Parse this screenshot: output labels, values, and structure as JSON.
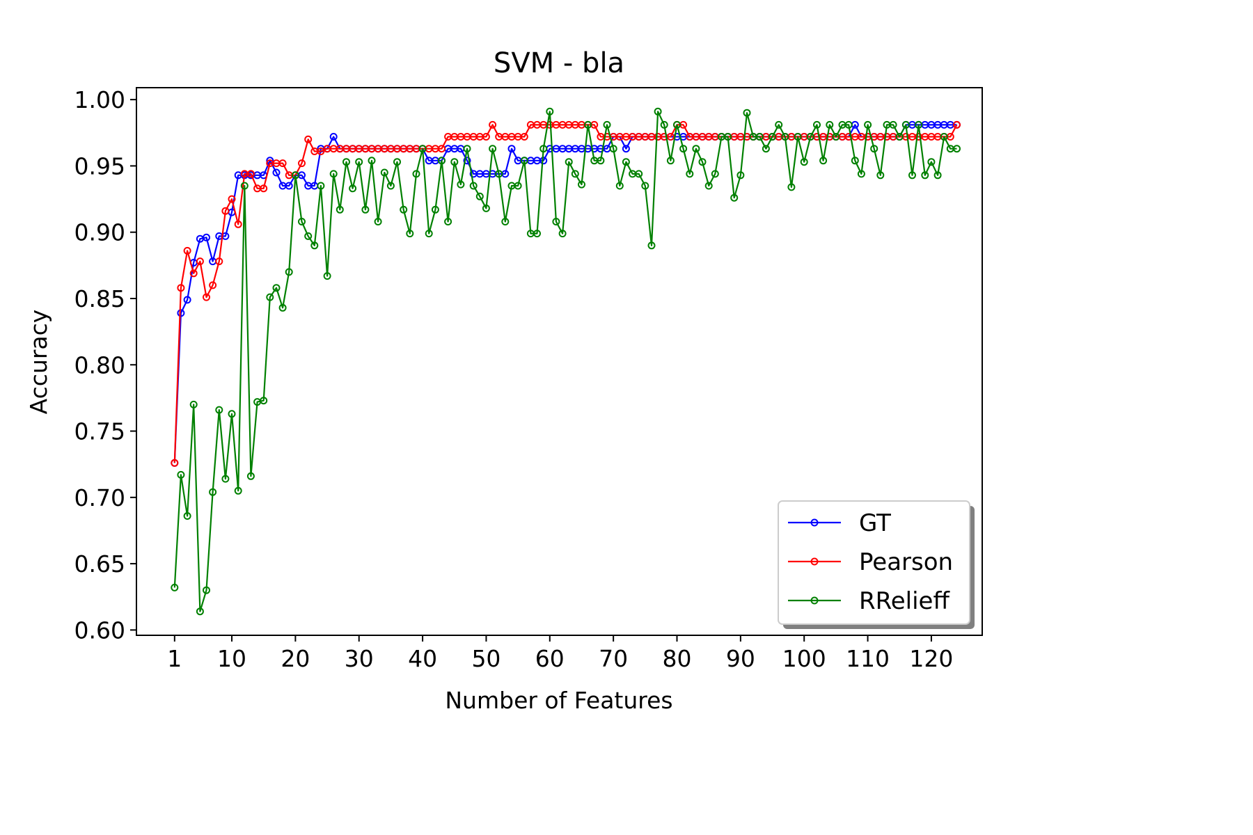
{
  "chart_data": {
    "type": "line",
    "title": "SVM - bla",
    "xlabel": "Number of Features",
    "ylabel": "Accuracy",
    "xlim": [
      -5,
      128
    ],
    "ylim": [
      0.596,
      1.009
    ],
    "xticks": [
      1,
      10,
      20,
      30,
      40,
      50,
      60,
      70,
      80,
      90,
      100,
      110,
      120
    ],
    "yticks": [
      0.6,
      0.65,
      0.7,
      0.75,
      0.8,
      0.85,
      0.9,
      0.95,
      1.0
    ],
    "ytick_labels": [
      "0.60",
      "0.65",
      "0.70",
      "0.75",
      "0.80",
      "0.85",
      "0.90",
      "0.95",
      "1.00"
    ],
    "grid": false,
    "legend_position": "lower-right",
    "marker": "open-circle",
    "series": [
      {
        "name": "GT",
        "color": "#0000ff",
        "x": [
          1,
          2,
          3,
          4,
          5,
          6,
          7,
          8,
          9,
          10,
          11,
          12,
          13,
          14,
          15,
          16,
          17,
          18,
          19,
          20,
          21,
          22,
          23,
          24,
          25,
          26,
          27,
          28,
          29,
          30,
          31,
          32,
          33,
          34,
          35,
          36,
          37,
          38,
          39,
          40,
          41,
          42,
          43,
          44,
          45,
          46,
          47,
          48,
          49,
          50,
          51,
          52,
          53,
          54,
          55,
          56,
          57,
          58,
          59,
          60,
          61,
          62,
          63,
          64,
          65,
          66,
          67,
          68,
          69,
          70,
          71,
          72,
          73,
          74,
          75,
          76,
          77,
          78,
          79,
          80,
          81,
          82,
          83,
          84,
          85,
          86,
          87,
          88,
          89,
          90,
          91,
          92,
          93,
          94,
          95,
          96,
          97,
          98,
          99,
          100,
          101,
          102,
          103,
          104,
          105,
          106,
          107,
          108,
          109,
          110,
          111,
          112,
          113,
          114,
          115,
          116,
          117,
          118,
          119,
          120,
          121,
          122,
          123,
          124
        ],
        "values": [
          0.726,
          0.839,
          0.849,
          0.877,
          0.895,
          0.896,
          0.878,
          0.897,
          0.897,
          0.915,
          0.943,
          0.943,
          0.943,
          0.943,
          0.943,
          0.954,
          0.945,
          0.935,
          0.935,
          0.943,
          0.943,
          0.935,
          0.935,
          0.963,
          0.963,
          0.972,
          0.963,
          0.963,
          0.963,
          0.963,
          0.963,
          0.963,
          0.963,
          0.963,
          0.963,
          0.963,
          0.963,
          0.963,
          0.963,
          0.963,
          0.954,
          0.954,
          0.954,
          0.963,
          0.963,
          0.963,
          0.954,
          0.944,
          0.944,
          0.944,
          0.944,
          0.944,
          0.944,
          0.963,
          0.954,
          0.954,
          0.954,
          0.954,
          0.954,
          0.963,
          0.963,
          0.963,
          0.963,
          0.963,
          0.963,
          0.963,
          0.963,
          0.963,
          0.963,
          0.972,
          0.972,
          0.963,
          0.972,
          0.972,
          0.972,
          0.972,
          0.972,
          0.972,
          0.972,
          0.972,
          0.972,
          0.972,
          0.972,
          0.972,
          0.972,
          0.972,
          0.972,
          0.972,
          0.972,
          0.972,
          0.972,
          0.972,
          0.972,
          0.972,
          0.972,
          0.972,
          0.972,
          0.972,
          0.972,
          0.972,
          0.972,
          0.972,
          0.972,
          0.972,
          0.972,
          0.972,
          0.972,
          0.981,
          0.972,
          0.972,
          0.972,
          0.972,
          0.972,
          0.972,
          0.972,
          0.981,
          0.981,
          0.981,
          0.981,
          0.981,
          0.981,
          0.981,
          0.981,
          0.981
        ]
      },
      {
        "name": "Pearson",
        "color": "#ff0000",
        "x": [
          1,
          2,
          3,
          4,
          5,
          6,
          7,
          8,
          9,
          10,
          11,
          12,
          13,
          14,
          15,
          16,
          17,
          18,
          19,
          20,
          21,
          22,
          23,
          24,
          25,
          26,
          27,
          28,
          29,
          30,
          31,
          32,
          33,
          34,
          35,
          36,
          37,
          38,
          39,
          40,
          41,
          42,
          43,
          44,
          45,
          46,
          47,
          48,
          49,
          50,
          51,
          52,
          53,
          54,
          55,
          56,
          57,
          58,
          59,
          60,
          61,
          62,
          63,
          64,
          65,
          66,
          67,
          68,
          69,
          70,
          71,
          72,
          73,
          74,
          75,
          76,
          77,
          78,
          79,
          80,
          81,
          82,
          83,
          84,
          85,
          86,
          87,
          88,
          89,
          90,
          91,
          92,
          93,
          94,
          95,
          96,
          97,
          98,
          99,
          100,
          101,
          102,
          103,
          104,
          105,
          106,
          107,
          108,
          109,
          110,
          111,
          112,
          113,
          114,
          115,
          116,
          117,
          118,
          119,
          120,
          121,
          122,
          123,
          124
        ],
        "values": [
          0.726,
          0.858,
          0.886,
          0.869,
          0.878,
          0.851,
          0.86,
          0.878,
          0.916,
          0.925,
          0.906,
          0.944,
          0.944,
          0.933,
          0.933,
          0.952,
          0.952,
          0.952,
          0.943,
          0.943,
          0.952,
          0.97,
          0.961,
          0.961,
          0.963,
          0.963,
          0.963,
          0.963,
          0.963,
          0.963,
          0.963,
          0.963,
          0.963,
          0.963,
          0.963,
          0.963,
          0.963,
          0.963,
          0.963,
          0.963,
          0.963,
          0.963,
          0.963,
          0.972,
          0.972,
          0.972,
          0.972,
          0.972,
          0.972,
          0.972,
          0.981,
          0.972,
          0.972,
          0.972,
          0.972,
          0.972,
          0.981,
          0.981,
          0.981,
          0.981,
          0.981,
          0.981,
          0.981,
          0.981,
          0.981,
          0.981,
          0.981,
          0.972,
          0.972,
          0.972,
          0.972,
          0.972,
          0.972,
          0.972,
          0.972,
          0.972,
          0.972,
          0.972,
          0.972,
          0.981,
          0.981,
          0.972,
          0.972,
          0.972,
          0.972,
          0.972,
          0.972,
          0.972,
          0.972,
          0.972,
          0.972,
          0.972,
          0.972,
          0.972,
          0.972,
          0.972,
          0.972,
          0.972,
          0.972,
          0.972,
          0.972,
          0.972,
          0.972,
          0.972,
          0.972,
          0.972,
          0.972,
          0.972,
          0.972,
          0.972,
          0.972,
          0.972,
          0.972,
          0.972,
          0.972,
          0.972,
          0.972,
          0.972,
          0.972,
          0.972,
          0.972,
          0.972,
          0.972,
          0.981
        ]
      },
      {
        "name": "RRelieff",
        "color": "#008000",
        "x": [
          1,
          2,
          3,
          4,
          5,
          6,
          7,
          8,
          9,
          10,
          11,
          12,
          13,
          14,
          15,
          16,
          17,
          18,
          19,
          20,
          21,
          22,
          23,
          24,
          25,
          26,
          27,
          28,
          29,
          30,
          31,
          32,
          33,
          34,
          35,
          36,
          37,
          38,
          39,
          40,
          41,
          42,
          43,
          44,
          45,
          46,
          47,
          48,
          49,
          50,
          51,
          52,
          53,
          54,
          55,
          56,
          57,
          58,
          59,
          60,
          61,
          62,
          63,
          64,
          65,
          66,
          67,
          68,
          69,
          70,
          71,
          72,
          73,
          74,
          75,
          76,
          77,
          78,
          79,
          80,
          81,
          82,
          83,
          84,
          85,
          86,
          87,
          88,
          89,
          90,
          91,
          92,
          93,
          94,
          95,
          96,
          97,
          98,
          99,
          100,
          101,
          102,
          103,
          104,
          105,
          106,
          107,
          108,
          109,
          110,
          111,
          112,
          113,
          114,
          115,
          116,
          117,
          118,
          119,
          120,
          121,
          122,
          123,
          124
        ],
        "values": [
          0.632,
          0.717,
          0.686,
          0.77,
          0.614,
          0.63,
          0.704,
          0.766,
          0.714,
          0.763,
          0.705,
          0.935,
          0.716,
          0.772,
          0.773,
          0.851,
          0.858,
          0.843,
          0.87,
          0.943,
          0.908,
          0.897,
          0.89,
          0.935,
          0.867,
          0.944,
          0.917,
          0.953,
          0.933,
          0.953,
          0.917,
          0.954,
          0.908,
          0.945,
          0.935,
          0.953,
          0.917,
          0.899,
          0.944,
          0.963,
          0.899,
          0.917,
          0.954,
          0.908,
          0.953,
          0.936,
          0.963,
          0.935,
          0.927,
          0.918,
          0.963,
          0.944,
          0.908,
          0.935,
          0.935,
          0.954,
          0.899,
          0.899,
          0.963,
          0.991,
          0.908,
          0.899,
          0.953,
          0.944,
          0.936,
          0.981,
          0.954,
          0.954,
          0.981,
          0.963,
          0.935,
          0.953,
          0.944,
          0.944,
          0.935,
          0.89,
          0.991,
          0.981,
          0.954,
          0.981,
          0.963,
          0.944,
          0.963,
          0.953,
          0.935,
          0.944,
          0.972,
          0.972,
          0.926,
          0.943,
          0.99,
          0.972,
          0.972,
          0.963,
          0.972,
          0.981,
          0.972,
          0.934,
          0.972,
          0.953,
          0.972,
          0.981,
          0.954,
          0.981,
          0.972,
          0.981,
          0.981,
          0.954,
          0.944,
          0.981,
          0.963,
          0.943,
          0.981,
          0.981,
          0.972,
          0.981,
          0.943,
          0.981,
          0.943,
          0.953,
          0.943,
          0.972,
          0.963,
          0.963
        ]
      }
    ]
  }
}
